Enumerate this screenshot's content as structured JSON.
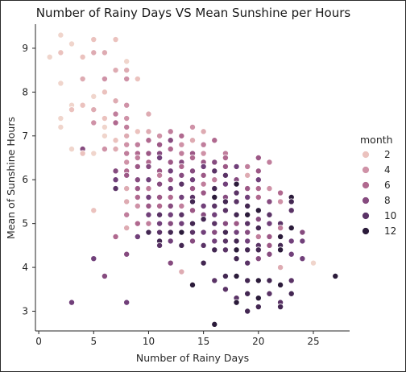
{
  "chart_data": {
    "type": "scatter",
    "title": "Number of Rainy Days VS Mean Sunshine per Hours",
    "xlabel": "Number of Rainy Days",
    "ylabel": "Mean of Sunshine Hours",
    "xlim": [
      -0.3,
      28.3
    ],
    "ylim": [
      2.55,
      9.55
    ],
    "xticks": [
      0,
      5,
      10,
      15,
      20,
      25
    ],
    "yticks": [
      3,
      4,
      5,
      6,
      7,
      8,
      9
    ],
    "legend": {
      "title": "month",
      "position": "right",
      "entries": [
        {
          "label": "2",
          "color": "#ebc2be"
        },
        {
          "label": "4",
          "color": "#cf92a7"
        },
        {
          "label": "6",
          "color": "#b0698f"
        },
        {
          "label": "8",
          "color": "#864b7f"
        },
        {
          "label": "10",
          "color": "#5a3366"
        },
        {
          "label": "12",
          "color": "#2b1b3a"
        }
      ]
    },
    "colors": {
      "1": "#f0d5cc",
      "2": "#ebc2be",
      "3": "#deabb2",
      "4": "#cf92a7",
      "5": "#c07e9c",
      "6": "#b0698f",
      "7": "#9c5886",
      "8": "#864b7f",
      "9": "#71407a",
      "10": "#5a3366",
      "11": "#432752",
      "12": "#2b1b3a"
    },
    "points": [
      [
        2,
        9.3,
        1
      ],
      [
        3,
        9.1,
        1
      ],
      [
        1,
        8.8,
        1
      ],
      [
        2,
        8.9,
        2
      ],
      [
        4,
        8.8,
        2
      ],
      [
        5,
        9.2,
        2
      ],
      [
        7,
        9.2,
        2
      ],
      [
        8,
        8.7,
        1
      ],
      [
        5,
        8.9,
        3
      ],
      [
        6,
        8.9,
        3
      ],
      [
        7,
        8.5,
        3
      ],
      [
        2,
        8.2,
        1
      ],
      [
        4,
        8.3,
        3
      ],
      [
        6,
        8.3,
        4
      ],
      [
        8,
        8.5,
        3
      ],
      [
        8,
        8.3,
        4
      ],
      [
        9,
        8.3,
        2
      ],
      [
        3,
        7.7,
        1
      ],
      [
        4,
        7.7,
        2
      ],
      [
        5,
        7.9,
        1
      ],
      [
        6,
        8.0,
        2
      ],
      [
        7,
        7.8,
        3
      ],
      [
        8,
        7.7,
        4
      ],
      [
        2,
        7.4,
        1
      ],
      [
        3,
        7.6,
        2
      ],
      [
        5,
        7.6,
        3
      ],
      [
        6,
        7.4,
        2
      ],
      [
        7,
        7.5,
        5
      ],
      [
        8,
        7.4,
        4
      ],
      [
        2,
        7.2,
        1
      ],
      [
        5,
        7.3,
        4
      ],
      [
        6,
        7.2,
        1
      ],
      [
        7,
        7.3,
        6
      ],
      [
        8,
        7.2,
        5
      ],
      [
        10,
        7.5,
        3
      ],
      [
        6,
        7.0,
        1
      ],
      [
        7,
        6.9,
        2
      ],
      [
        8,
        7.0,
        3
      ],
      [
        9,
        7.1,
        2
      ],
      [
        10,
        7.1,
        3
      ],
      [
        11,
        7.0,
        4
      ],
      [
        12,
        7.1,
        5
      ],
      [
        13,
        7.0,
        6
      ],
      [
        14,
        7.2,
        4
      ],
      [
        15,
        7.1,
        3
      ],
      [
        3,
        6.7,
        1
      ],
      [
        4,
        6.7,
        8
      ],
      [
        5,
        6.6,
        1
      ],
      [
        6,
        6.7,
        4
      ],
      [
        7,
        6.7,
        3
      ],
      [
        8,
        6.8,
        4
      ],
      [
        9,
        6.8,
        5
      ],
      [
        10,
        6.9,
        6
      ],
      [
        11,
        6.8,
        7
      ],
      [
        12,
        6.9,
        8
      ],
      [
        13,
        6.8,
        4
      ],
      [
        14,
        6.9,
        3
      ],
      [
        15,
        6.8,
        5
      ],
      [
        16,
        6.9,
        6
      ],
      [
        4,
        6.6,
        2
      ],
      [
        8,
        6.6,
        5
      ],
      [
        9,
        6.6,
        6
      ],
      [
        10,
        6.6,
        7
      ],
      [
        11,
        6.6,
        8
      ],
      [
        12,
        6.7,
        6
      ],
      [
        13,
        6.6,
        5
      ],
      [
        14,
        6.6,
        7
      ],
      [
        15,
        6.6,
        4
      ],
      [
        17,
        6.6,
        5
      ],
      [
        8,
        6.4,
        4
      ],
      [
        9,
        6.5,
        5
      ],
      [
        10,
        6.4,
        6
      ],
      [
        11,
        6.5,
        9
      ],
      [
        12,
        6.4,
        7
      ],
      [
        13,
        6.4,
        8
      ],
      [
        14,
        6.5,
        6
      ],
      [
        15,
        6.4,
        7
      ],
      [
        16,
        6.4,
        8
      ],
      [
        17,
        6.5,
        6
      ],
      [
        20,
        6.5,
        7
      ],
      [
        21,
        6.4,
        5
      ],
      [
        7,
        6.2,
        8
      ],
      [
        8,
        6.2,
        6
      ],
      [
        9,
        6.3,
        7
      ],
      [
        10,
        6.3,
        8
      ],
      [
        11,
        6.2,
        7
      ],
      [
        12,
        6.2,
        9
      ],
      [
        13,
        6.3,
        6
      ],
      [
        14,
        6.2,
        8
      ],
      [
        15,
        6.3,
        9
      ],
      [
        16,
        6.2,
        10
      ],
      [
        17,
        6.3,
        7
      ],
      [
        18,
        6.3,
        9
      ],
      [
        19,
        6.3,
        5
      ],
      [
        20,
        6.2,
        7
      ],
      [
        7,
        6.0,
        9
      ],
      [
        8,
        6.1,
        7
      ],
      [
        9,
        6.0,
        8
      ],
      [
        10,
        6.0,
        9
      ],
      [
        11,
        6.1,
        5
      ],
      [
        12,
        6.0,
        7
      ],
      [
        13,
        6.1,
        8
      ],
      [
        14,
        6.0,
        9
      ],
      [
        15,
        6.1,
        7
      ],
      [
        16,
        6.0,
        5
      ],
      [
        17,
        6.1,
        10
      ],
      [
        18,
        6.0,
        8
      ],
      [
        19,
        6.1,
        3
      ],
      [
        20,
        6.0,
        9
      ],
      [
        7,
        5.8,
        10
      ],
      [
        8,
        5.8,
        3
      ],
      [
        9,
        5.8,
        7
      ],
      [
        10,
        5.8,
        5
      ],
      [
        11,
        5.9,
        8
      ],
      [
        12,
        5.8,
        9
      ],
      [
        13,
        5.9,
        10
      ],
      [
        14,
        5.8,
        7
      ],
      [
        15,
        5.9,
        5
      ],
      [
        16,
        5.8,
        11
      ],
      [
        17,
        5.9,
        9
      ],
      [
        18,
        5.9,
        12
      ],
      [
        19,
        5.8,
        7
      ],
      [
        20,
        5.8,
        6
      ],
      [
        21,
        5.8,
        4
      ],
      [
        22,
        5.7,
        6
      ],
      [
        23,
        5.6,
        12
      ],
      [
        9,
        5.6,
        6
      ],
      [
        10,
        5.6,
        9
      ],
      [
        11,
        5.6,
        7
      ],
      [
        12,
        5.6,
        6
      ],
      [
        13,
        5.6,
        9
      ],
      [
        14,
        5.6,
        10
      ],
      [
        15,
        5.7,
        7
      ],
      [
        16,
        5.6,
        12
      ],
      [
        17,
        5.6,
        8
      ],
      [
        18,
        5.7,
        10
      ],
      [
        19,
        5.6,
        9
      ],
      [
        20,
        5.6,
        6
      ],
      [
        21,
        5.5,
        8
      ],
      [
        22,
        5.5,
        4
      ],
      [
        23,
        5.5,
        11
      ],
      [
        8,
        5.5,
        3
      ],
      [
        9,
        5.4,
        4
      ],
      [
        10,
        5.4,
        7
      ],
      [
        11,
        5.4,
        6
      ],
      [
        12,
        5.4,
        8
      ],
      [
        13,
        5.4,
        5
      ],
      [
        14,
        5.5,
        11
      ],
      [
        15,
        5.4,
        9
      ],
      [
        16,
        5.4,
        10
      ],
      [
        17,
        5.5,
        11
      ],
      [
        18,
        5.5,
        10
      ],
      [
        19,
        5.4,
        11
      ],
      [
        20,
        5.3,
        12
      ],
      [
        21,
        5.2,
        10
      ],
      [
        23,
        5.3,
        10
      ],
      [
        5,
        5.3,
        2
      ],
      [
        8,
        5.2,
        5
      ],
      [
        10,
        5.2,
        9
      ],
      [
        11,
        5.2,
        10
      ],
      [
        12,
        5.2,
        9
      ],
      [
        13,
        5.2,
        10
      ],
      [
        14,
        5.3,
        7
      ],
      [
        15,
        5.2,
        8
      ],
      [
        16,
        5.2,
        9
      ],
      [
        17,
        5.3,
        10
      ],
      [
        18,
        5.2,
        11
      ],
      [
        19,
        5.2,
        12
      ],
      [
        20,
        5.1,
        8
      ],
      [
        21,
        5.0,
        9
      ],
      [
        22,
        5.0,
        10
      ],
      [
        9,
        5.0,
        6
      ],
      [
        10,
        5.0,
        5
      ],
      [
        11,
        5.0,
        9
      ],
      [
        12,
        5.0,
        8
      ],
      [
        13,
        5.0,
        9
      ],
      [
        14,
        5.0,
        11
      ],
      [
        15,
        5.1,
        11
      ],
      [
        16,
        5.0,
        10
      ],
      [
        17,
        5.0,
        8
      ],
      [
        18,
        5.0,
        7
      ],
      [
        19,
        5.0,
        10
      ],
      [
        20,
        4.9,
        11
      ],
      [
        22,
        4.9,
        5
      ],
      [
        23,
        4.9,
        12
      ],
      [
        8,
        4.9,
        3
      ],
      [
        10,
        4.8,
        11
      ],
      [
        11,
        4.8,
        10
      ],
      [
        12,
        4.8,
        11
      ],
      [
        13,
        4.8,
        12
      ],
      [
        14,
        4.8,
        10
      ],
      [
        15,
        4.8,
        9
      ],
      [
        16,
        4.8,
        8
      ],
      [
        17,
        4.8,
        11
      ],
      [
        18,
        4.8,
        9
      ],
      [
        19,
        4.8,
        8
      ],
      [
        20,
        4.7,
        5
      ],
      [
        21,
        4.7,
        7
      ],
      [
        22,
        4.7,
        12
      ],
      [
        23,
        4.6,
        9
      ],
      [
        24,
        4.8,
        8
      ],
      [
        7,
        4.7,
        6
      ],
      [
        9,
        4.7,
        9
      ],
      [
        11,
        4.6,
        11
      ],
      [
        12,
        4.6,
        9
      ],
      [
        14,
        4.6,
        8
      ],
      [
        15,
        4.5,
        10
      ],
      [
        16,
        4.6,
        9
      ],
      [
        17,
        4.6,
        10
      ],
      [
        18,
        4.6,
        11
      ],
      [
        19,
        4.6,
        9
      ],
      [
        20,
        4.5,
        10
      ],
      [
        21,
        4.5,
        7
      ],
      [
        22,
        4.5,
        11
      ],
      [
        24,
        4.6,
        9
      ],
      [
        11,
        4.5,
        10
      ],
      [
        13,
        4.5,
        11
      ],
      [
        16,
        4.4,
        11
      ],
      [
        17,
        4.4,
        10
      ],
      [
        18,
        4.4,
        12
      ],
      [
        19,
        4.4,
        11
      ],
      [
        20,
        4.4,
        11
      ],
      [
        21,
        4.3,
        8
      ],
      [
        22,
        4.4,
        12
      ],
      [
        23,
        4.3,
        9
      ],
      [
        5,
        4.2,
        9
      ],
      [
        8,
        4.3,
        8
      ],
      [
        12,
        4.1,
        8
      ],
      [
        15,
        4.1,
        11
      ],
      [
        18,
        4.2,
        11
      ],
      [
        19,
        4.1,
        10
      ],
      [
        20,
        4.2,
        8
      ],
      [
        22,
        4.0,
        3
      ],
      [
        24,
        4.2,
        9
      ],
      [
        25,
        4.1,
        1
      ],
      [
        6,
        3.8,
        8
      ],
      [
        13,
        3.9,
        3
      ],
      [
        14,
        3.6,
        12
      ],
      [
        16,
        3.7,
        10
      ],
      [
        17,
        3.8,
        11
      ],
      [
        18,
        3.8,
        12
      ],
      [
        19,
        3.7,
        11
      ],
      [
        20,
        3.7,
        12
      ],
      [
        21,
        3.7,
        11
      ],
      [
        22,
        3.6,
        12
      ],
      [
        23,
        3.7,
        10
      ],
      [
        27,
        3.8,
        12
      ],
      [
        3,
        3.2,
        9
      ],
      [
        8,
        3.2,
        9
      ],
      [
        17,
        3.5,
        10
      ],
      [
        18,
        3.3,
        10
      ],
      [
        19,
        3.4,
        11
      ],
      [
        20,
        3.3,
        12
      ],
      [
        21,
        3.4,
        10
      ],
      [
        22,
        3.2,
        10
      ],
      [
        22,
        3.1,
        11
      ],
      [
        23,
        3.4,
        11
      ],
      [
        18,
        3.2,
        12
      ],
      [
        20,
        3.1,
        11
      ],
      [
        19,
        3.0,
        11
      ],
      [
        16,
        2.7,
        12
      ]
    ]
  }
}
